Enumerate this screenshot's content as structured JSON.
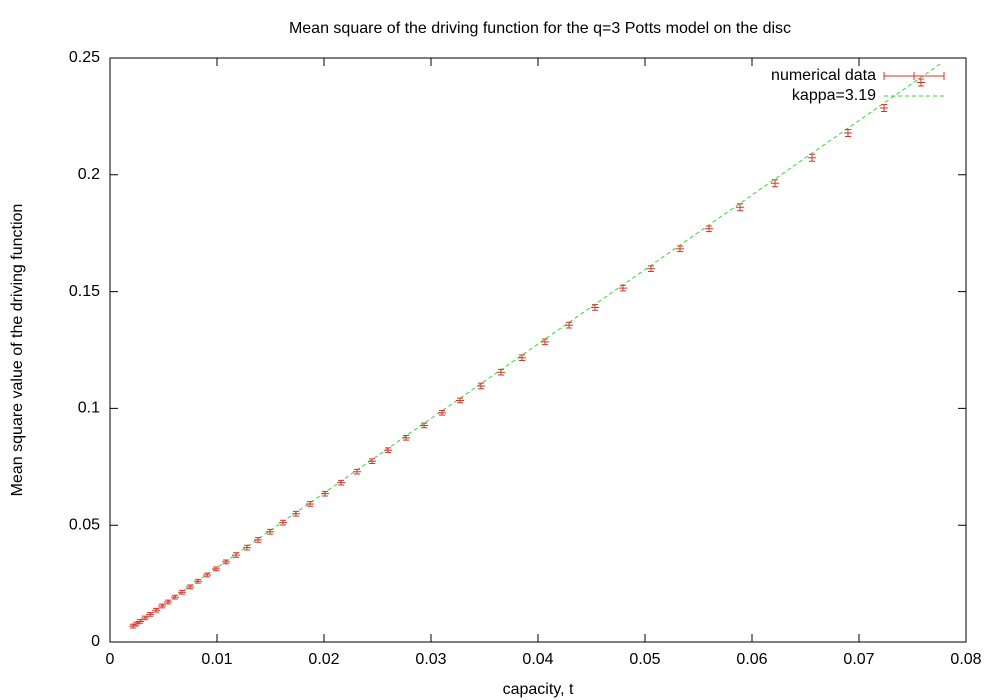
{
  "chart_data": {
    "type": "scatter",
    "title": "Mean square of the driving function for the q=3 Potts model on the disc",
    "x_label": "capacity, t",
    "y_label": "Mean square value of the driving function",
    "xlim": [
      0,
      0.08
    ],
    "xticks": [
      0,
      0.01,
      0.02,
      0.03,
      0.04,
      0.05,
      0.06,
      0.07,
      0.08
    ],
    "ylim": [
      0,
      0.25
    ],
    "yticks": [
      0,
      0.05,
      0.1,
      0.15,
      0.2,
      0.25
    ],
    "legend": "top-right",
    "series": [
      {
        "name": "numerical data",
        "color": "#e0302a",
        "style": "errorbars",
        "x": [
          0.00215,
          0.00243,
          0.0028,
          0.00327,
          0.00374,
          0.0043,
          0.00486,
          0.00542,
          0.00607,
          0.00673,
          0.00748,
          0.00822,
          0.00907,
          0.00991,
          0.01084,
          0.01178,
          0.0128,
          0.01383,
          0.01495,
          0.01617,
          0.01738,
          0.01869,
          0.02009,
          0.02159,
          0.02308,
          0.02449,
          0.02598,
          0.02766,
          0.02935,
          0.03103,
          0.03271,
          0.03467,
          0.03654,
          0.0385,
          0.04065,
          0.0429,
          0.04533,
          0.04794,
          0.05056,
          0.05327,
          0.05598,
          0.05888,
          0.06215,
          0.06561,
          0.06897,
          0.07234,
          0.07579
        ],
        "values": [
          0.0068,
          0.0077,
          0.0088,
          0.0103,
          0.0118,
          0.0136,
          0.0154,
          0.0171,
          0.0192,
          0.0213,
          0.0236,
          0.026,
          0.0287,
          0.0313,
          0.0343,
          0.0372,
          0.0404,
          0.0437,
          0.0472,
          0.0511,
          0.0549,
          0.0591,
          0.0635,
          0.0682,
          0.0729,
          0.0774,
          0.0821,
          0.0874,
          0.0927,
          0.0981,
          0.1034,
          0.1096,
          0.1155,
          0.1217,
          0.1285,
          0.1356,
          0.1432,
          0.1515,
          0.1598,
          0.1683,
          0.1769,
          0.1861,
          0.1964,
          0.2073,
          0.2179,
          0.2286,
          0.2395
        ],
        "errors": [
          0.0008,
          0.0008,
          0.0008,
          0.0008,
          0.0008,
          0.0008,
          0.0008,
          0.0008,
          0.0008,
          0.0008,
          0.0008,
          0.0008,
          0.0008,
          0.0008,
          0.0008,
          0.001,
          0.001,
          0.001,
          0.001,
          0.001,
          0.001,
          0.001,
          0.001,
          0.001,
          0.001,
          0.001,
          0.001,
          0.001,
          0.001,
          0.001,
          0.001,
          0.0012,
          0.0012,
          0.0012,
          0.0012,
          0.0012,
          0.0012,
          0.0012,
          0.0012,
          0.0012,
          0.0012,
          0.0015,
          0.0015,
          0.0015,
          0.0015,
          0.0015,
          0.0015
        ]
      },
      {
        "name": "kappa=3.19",
        "color": "#33dd33",
        "style": "dashed-line",
        "x": [
          0.0021,
          0.0776
        ],
        "values": [
          0.0067,
          0.2475
        ]
      }
    ]
  }
}
